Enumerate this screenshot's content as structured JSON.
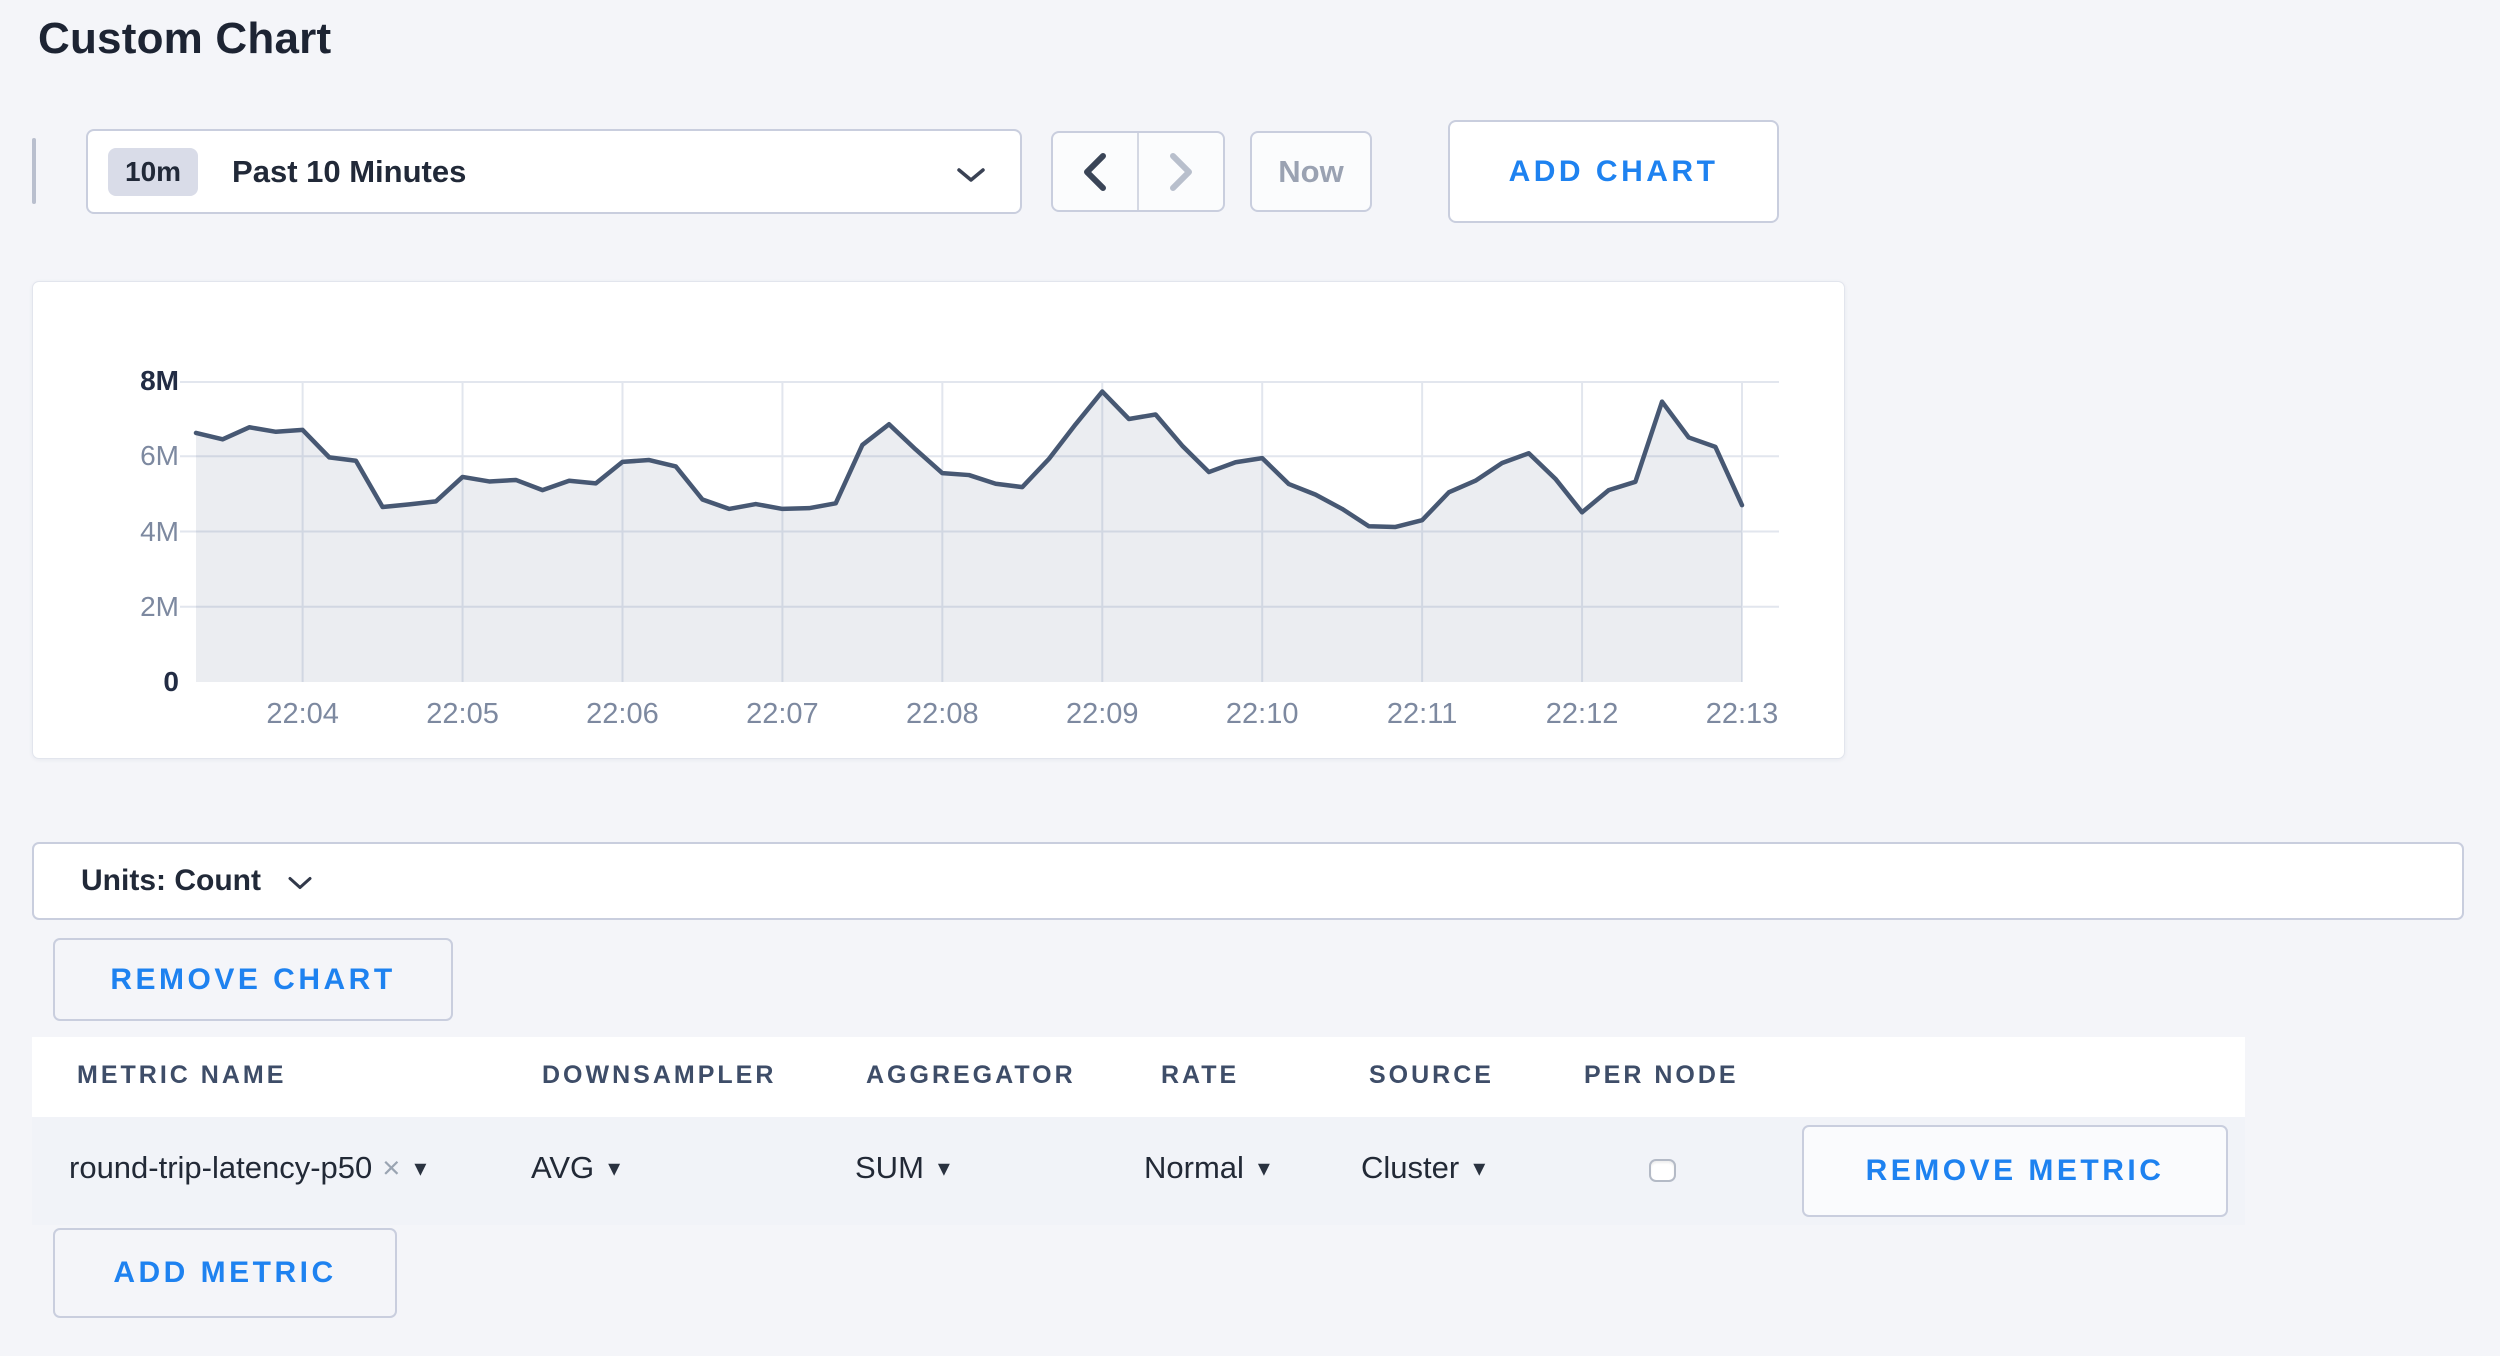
{
  "page": {
    "title": "Custom Chart"
  },
  "toolbar": {
    "time_badge": "10m",
    "time_range_label": "Past 10 Minutes",
    "now_button_label": "Now",
    "add_chart_label": "ADD CHART"
  },
  "units_bar": {
    "label": "Units: Count"
  },
  "chart_controls": {
    "remove_chart_label": "REMOVE CHART",
    "add_metric_label": "ADD METRIC"
  },
  "metrics_table": {
    "headers": {
      "metric_name": "METRIC NAME",
      "downsampler": "DOWNSAMPLER",
      "aggregator": "AGGREGATOR",
      "rate": "RATE",
      "source": "SOURCE",
      "per_node": "PER NODE"
    },
    "row": {
      "metric_name": "round-trip-latency-p50",
      "downsampler": "AVG",
      "aggregator": "SUM",
      "rate": "Normal",
      "source": "Cluster",
      "per_node_checked": false,
      "remove_metric_label": "REMOVE METRIC"
    }
  },
  "icons": {
    "close": "×",
    "caret_down": "▾"
  },
  "colors": {
    "accent_blue": "#1e82f0",
    "chart_line": "#475873",
    "chart_fill": "rgba(103,118,146,0.13)",
    "grid": "#e2e6ee",
    "page_background": "#f4f5f9"
  },
  "chart_data": {
    "type": "area",
    "title": "Custom Chart",
    "unit": "Count",
    "x_start": "22:03:20",
    "x_interval_seconds": 10,
    "x_tick_labels": [
      "22:04",
      "22:05",
      "22:06",
      "22:07",
      "22:08",
      "22:09",
      "22:10",
      "22:11",
      "22:12",
      "22:13"
    ],
    "x_tick_indices": [
      4,
      10,
      16,
      22,
      28,
      34,
      40,
      46,
      52,
      58
    ],
    "y_ticks": [
      {
        "label": "0",
        "value_millions": 0,
        "bold": true
      },
      {
        "label": "2M",
        "value_millions": 2,
        "bold": false
      },
      {
        "label": "4M",
        "value_millions": 4,
        "bold": false
      },
      {
        "label": "6M",
        "value_millions": 6,
        "bold": false
      },
      {
        "label": "8M",
        "value_millions": 8,
        "bold": true
      }
    ],
    "ylim_millions": [
      0,
      8
    ],
    "grid": true,
    "legend": "none",
    "values_millions": [
      6.62,
      6.45,
      6.77,
      6.65,
      6.7,
      5.97,
      5.88,
      4.65,
      4.72,
      4.8,
      5.45,
      5.33,
      5.37,
      5.1,
      5.35,
      5.28,
      5.85,
      5.9,
      5.73,
      4.85,
      4.6,
      4.73,
      4.6,
      4.62,
      4.75,
      6.3,
      6.85,
      6.18,
      5.55,
      5.5,
      5.27,
      5.18,
      5.93,
      6.85,
      7.72,
      6.99,
      7.11,
      6.28,
      5.58,
      5.84,
      5.95,
      5.26,
      4.98,
      4.6,
      4.14,
      4.12,
      4.3,
      5.04,
      5.35,
      5.82,
      6.08,
      5.4,
      4.51,
      5.1,
      5.32,
      7.45,
      6.5,
      6.25,
      4.7
    ]
  }
}
